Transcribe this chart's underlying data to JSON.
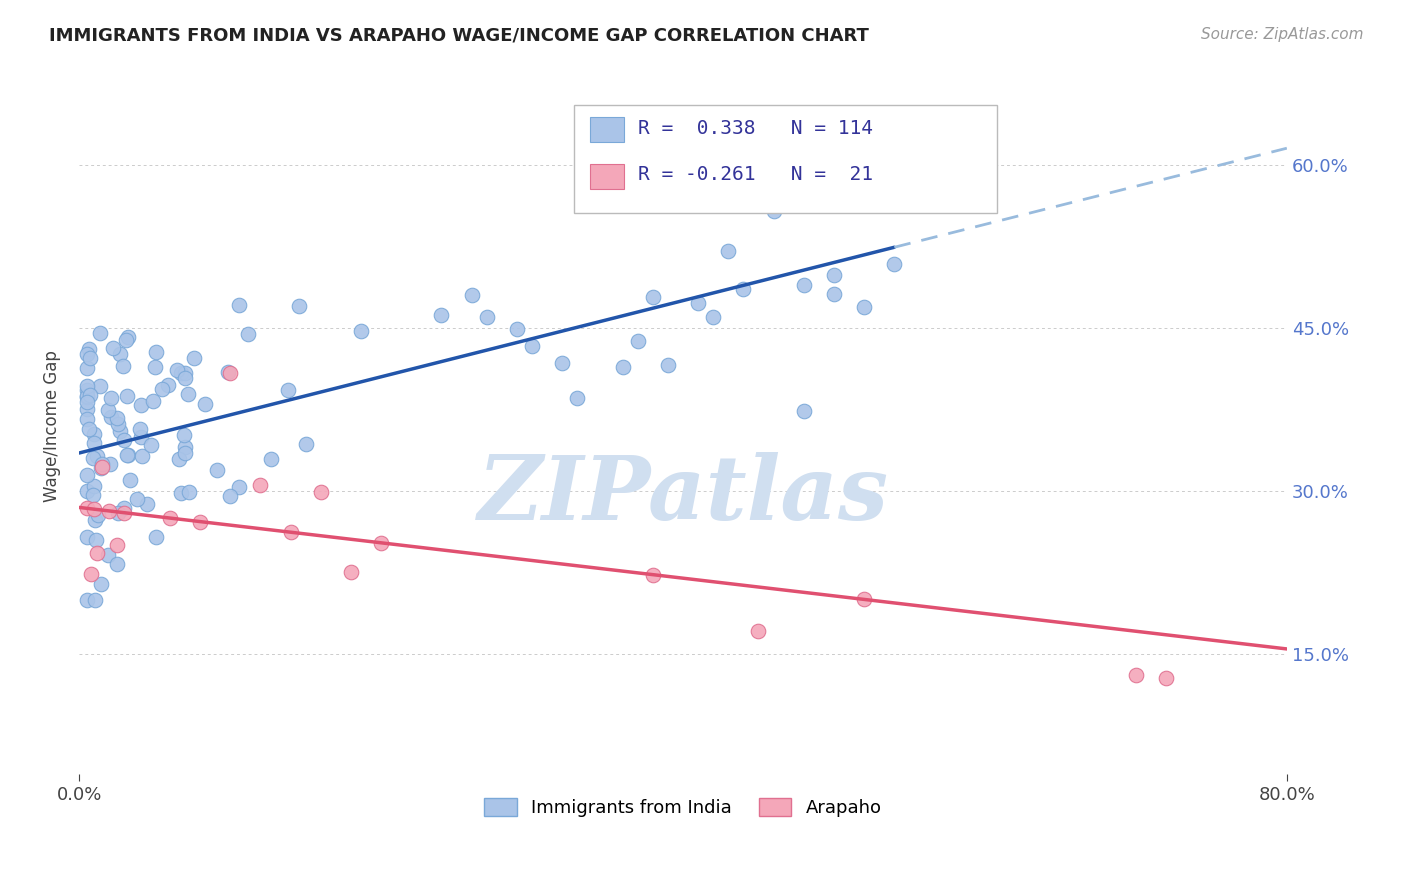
{
  "title": "IMMIGRANTS FROM INDIA VS ARAPAHO WAGE/INCOME GAP CORRELATION CHART",
  "source_text": "Source: ZipAtlas.com",
  "ylabel": "Wage/Income Gap",
  "xlabel": "",
  "legend_label1": "Immigrants from India",
  "legend_label2": "Arapaho",
  "R1": 0.338,
  "N1": 114,
  "R2": -0.261,
  "N2": 21,
  "xlim": [
    0.0,
    0.8
  ],
  "ylim": [
    0.04,
    0.68
  ],
  "xticks": [
    0.0,
    0.8
  ],
  "xtick_labels": [
    "0.0%",
    "80.0%"
  ],
  "ytick_positions": [
    0.15,
    0.3,
    0.45,
    0.6
  ],
  "ytick_labels": [
    "15.0%",
    "30.0%",
    "45.0%",
    "60.0%"
  ],
  "background_color": "#ffffff",
  "plot_bg_color": "#ffffff",
  "grid_color": "#cccccc",
  "scatter1_color": "#aac4e8",
  "scatter1_edge": "#7aa8d8",
  "scatter2_color": "#f4a7b9",
  "scatter2_edge": "#e07090",
  "line1_color": "#2255aa",
  "line2_color": "#e05070",
  "dashed_line_color": "#99bbdd",
  "watermark_color": "#d0dff0",
  "india_line_x0": 0.0,
  "india_line_y0": 0.335,
  "india_line_x1": 0.8,
  "india_line_y1": 0.615,
  "india_line_solid_end": 0.54,
  "arapaho_line_x0": 0.0,
  "arapaho_line_y0": 0.285,
  "arapaho_line_x1": 0.8,
  "arapaho_line_y1": 0.155
}
